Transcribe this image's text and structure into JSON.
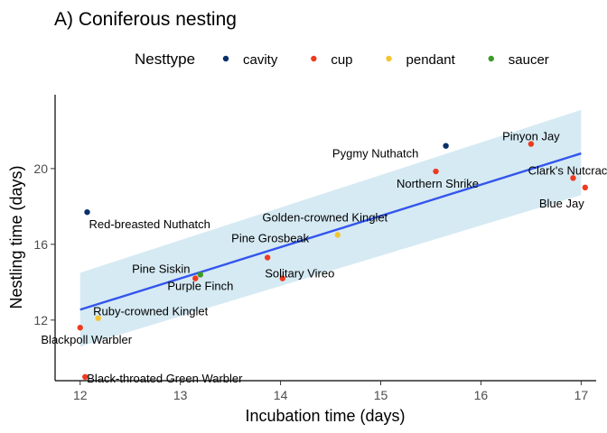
{
  "chart_data": {
    "type": "scatter",
    "title": "A) Coniferous nesting",
    "xlabel": "Incubation time (days)",
    "ylabel": "Nestling time (days)",
    "xlim": [
      11.75,
      17.15
    ],
    "ylim": [
      8.8,
      23.9
    ],
    "xticks": [
      12,
      13,
      14,
      15,
      16,
      17
    ],
    "yticks": [
      12,
      16,
      20
    ],
    "grid": false,
    "legend": {
      "title": "Nesttype",
      "placement": "top",
      "entries": [
        {
          "name": "cavity",
          "color": "#08306b"
        },
        {
          "name": "cup",
          "color": "#ee3b20"
        },
        {
          "name": "pendant",
          "color": "#f5c430"
        },
        {
          "name": "saucer",
          "color": "#3d9b26"
        }
      ]
    },
    "trend": {
      "x": [
        12,
        17
      ],
      "y": [
        12.55,
        20.8
      ],
      "ci_lower": [
        10.6,
        18.6
      ],
      "ci_upper": [
        14.5,
        23.1
      ],
      "line_color": "#3355ee",
      "band_color": "#cfe6f1"
    },
    "points": [
      {
        "label": "Red-breasted Nuthatch",
        "x": 12.07,
        "y": 17.7,
        "type": "cavity"
      },
      {
        "label": "Pygmy Nuthatch",
        "x": 15.65,
        "y": 21.2,
        "type": "cavity"
      },
      {
        "label": "Pinyon Jay",
        "x": 16.5,
        "y": 21.3,
        "type": "cup"
      },
      {
        "label": "Northern Shrike",
        "x": 15.55,
        "y": 19.85,
        "type": "cup"
      },
      {
        "label": "Clark's Nutcracker",
        "x": 16.92,
        "y": 19.5,
        "type": "cup"
      },
      {
        "label": "Blue Jay",
        "x": 17.04,
        "y": 19.0,
        "type": "cup"
      },
      {
        "label": "Golden-crowned Kinglet",
        "x": 14.57,
        "y": 16.5,
        "type": "pendant"
      },
      {
        "label": "Pine Grosbeak",
        "x": 13.87,
        "y": 15.3,
        "type": "cup"
      },
      {
        "label": "Solitary Vireo",
        "x": 14.02,
        "y": 14.2,
        "type": "cup"
      },
      {
        "label": "Pine Siskin",
        "x": 13.15,
        "y": 14.2,
        "type": "cup"
      },
      {
        "label": "Purple Finch",
        "x": 13.2,
        "y": 14.4,
        "type": "saucer"
      },
      {
        "label": "Ruby-crowned Kinglet",
        "x": 12.18,
        "y": 12.1,
        "type": "pendant"
      },
      {
        "label": "Blackpoll Warbler",
        "x": 12.0,
        "y": 11.6,
        "type": "cup"
      },
      {
        "label": "Black-throated Green Warbler",
        "x": 12.05,
        "y": 9.0,
        "type": "cup"
      }
    ]
  }
}
